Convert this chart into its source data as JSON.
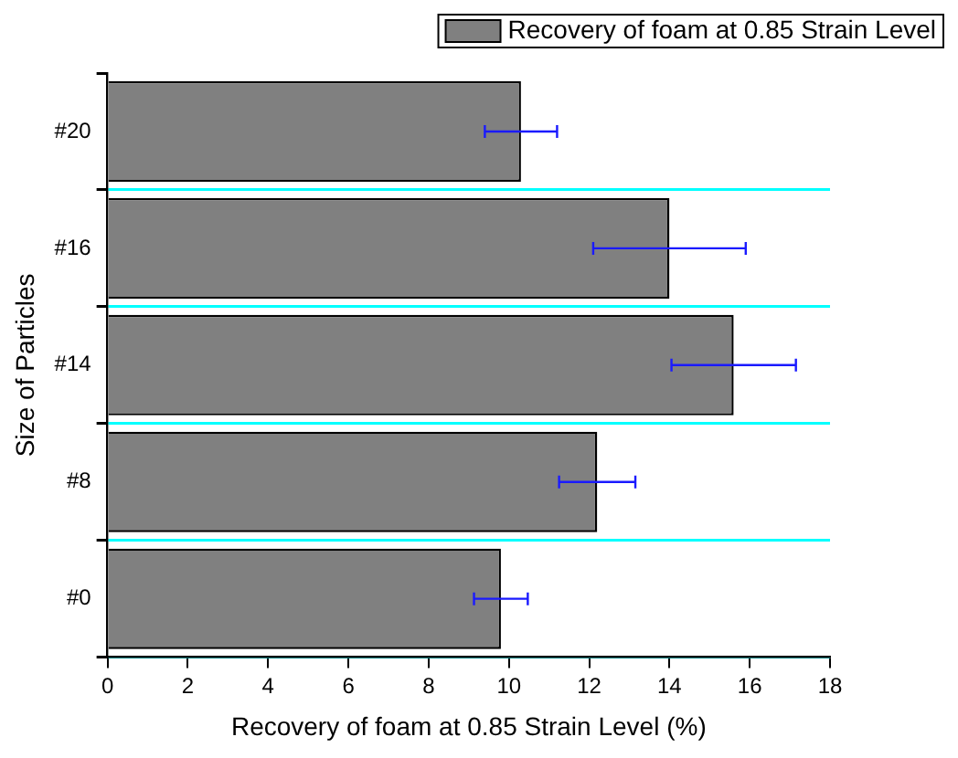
{
  "chart_data": {
    "type": "bar",
    "orientation": "horizontal",
    "xlabel": "Recovery of foam at 0.85 Strain Level (%)",
    "ylabel": "Size of Particles",
    "categories": [
      "#20",
      "#16",
      "#14",
      "#8",
      "#0"
    ],
    "series": [
      {
        "name": "Recovery of foam at 0.85 Strain Level",
        "color": "#808080",
        "values": [
          10.3,
          14.0,
          15.6,
          12.2,
          9.8
        ],
        "errors": [
          0.9,
          1.9,
          1.55,
          0.95,
          0.67
        ]
      }
    ],
    "xlim": [
      0,
      18
    ],
    "xticks": [
      0,
      2,
      4,
      6,
      8,
      10,
      12,
      14,
      16,
      18
    ],
    "grid": "y",
    "legend": "top right"
  }
}
